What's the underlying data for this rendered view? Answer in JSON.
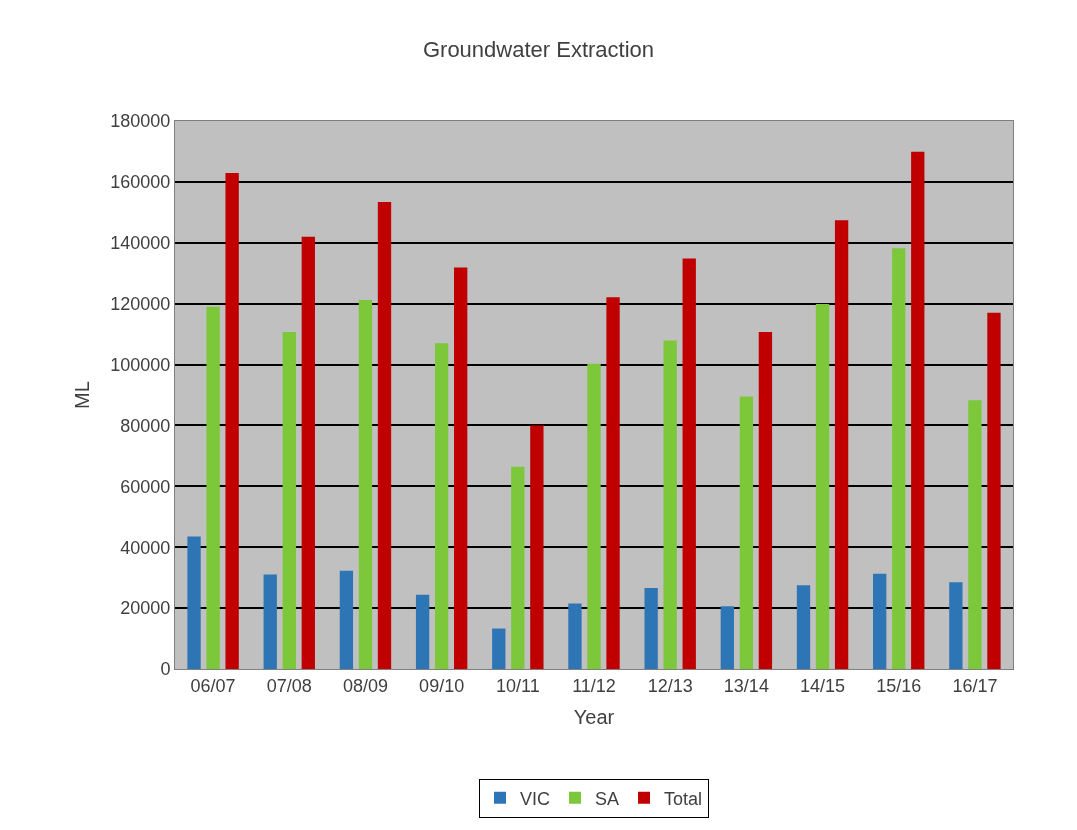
{
  "chart_data": {
    "type": "bar",
    "title": "Groundwater Extraction",
    "xlabel": "Year",
    "ylabel": "ML",
    "categories": [
      "06/07",
      "07/08",
      "08/09",
      "09/10",
      "10/11",
      "11/12",
      "12/13",
      "13/14",
      "14/15",
      "15/16",
      "16/17"
    ],
    "series": [
      {
        "name": "VIC",
        "color": "#2e75b6",
        "values": [
          43500,
          31000,
          32300,
          24400,
          13300,
          21500,
          26600,
          20600,
          27500,
          31300,
          28500
        ]
      },
      {
        "name": "SA",
        "color": "#7dc73b",
        "values": [
          119000,
          110700,
          121200,
          107000,
          66400,
          100300,
          107900,
          89500,
          119900,
          138200,
          88300
        ]
      },
      {
        "name": "Total",
        "color": "#c00000",
        "values": [
          162900,
          142000,
          153400,
          131900,
          80000,
          122100,
          134800,
          110700,
          147400,
          169900,
          117000
        ]
      }
    ],
    "ylim": [
      0,
      180000
    ],
    "yticks": [
      0,
      20000,
      40000,
      60000,
      80000,
      100000,
      120000,
      140000,
      160000,
      180000
    ],
    "grid": "y",
    "legend": "bottom"
  }
}
